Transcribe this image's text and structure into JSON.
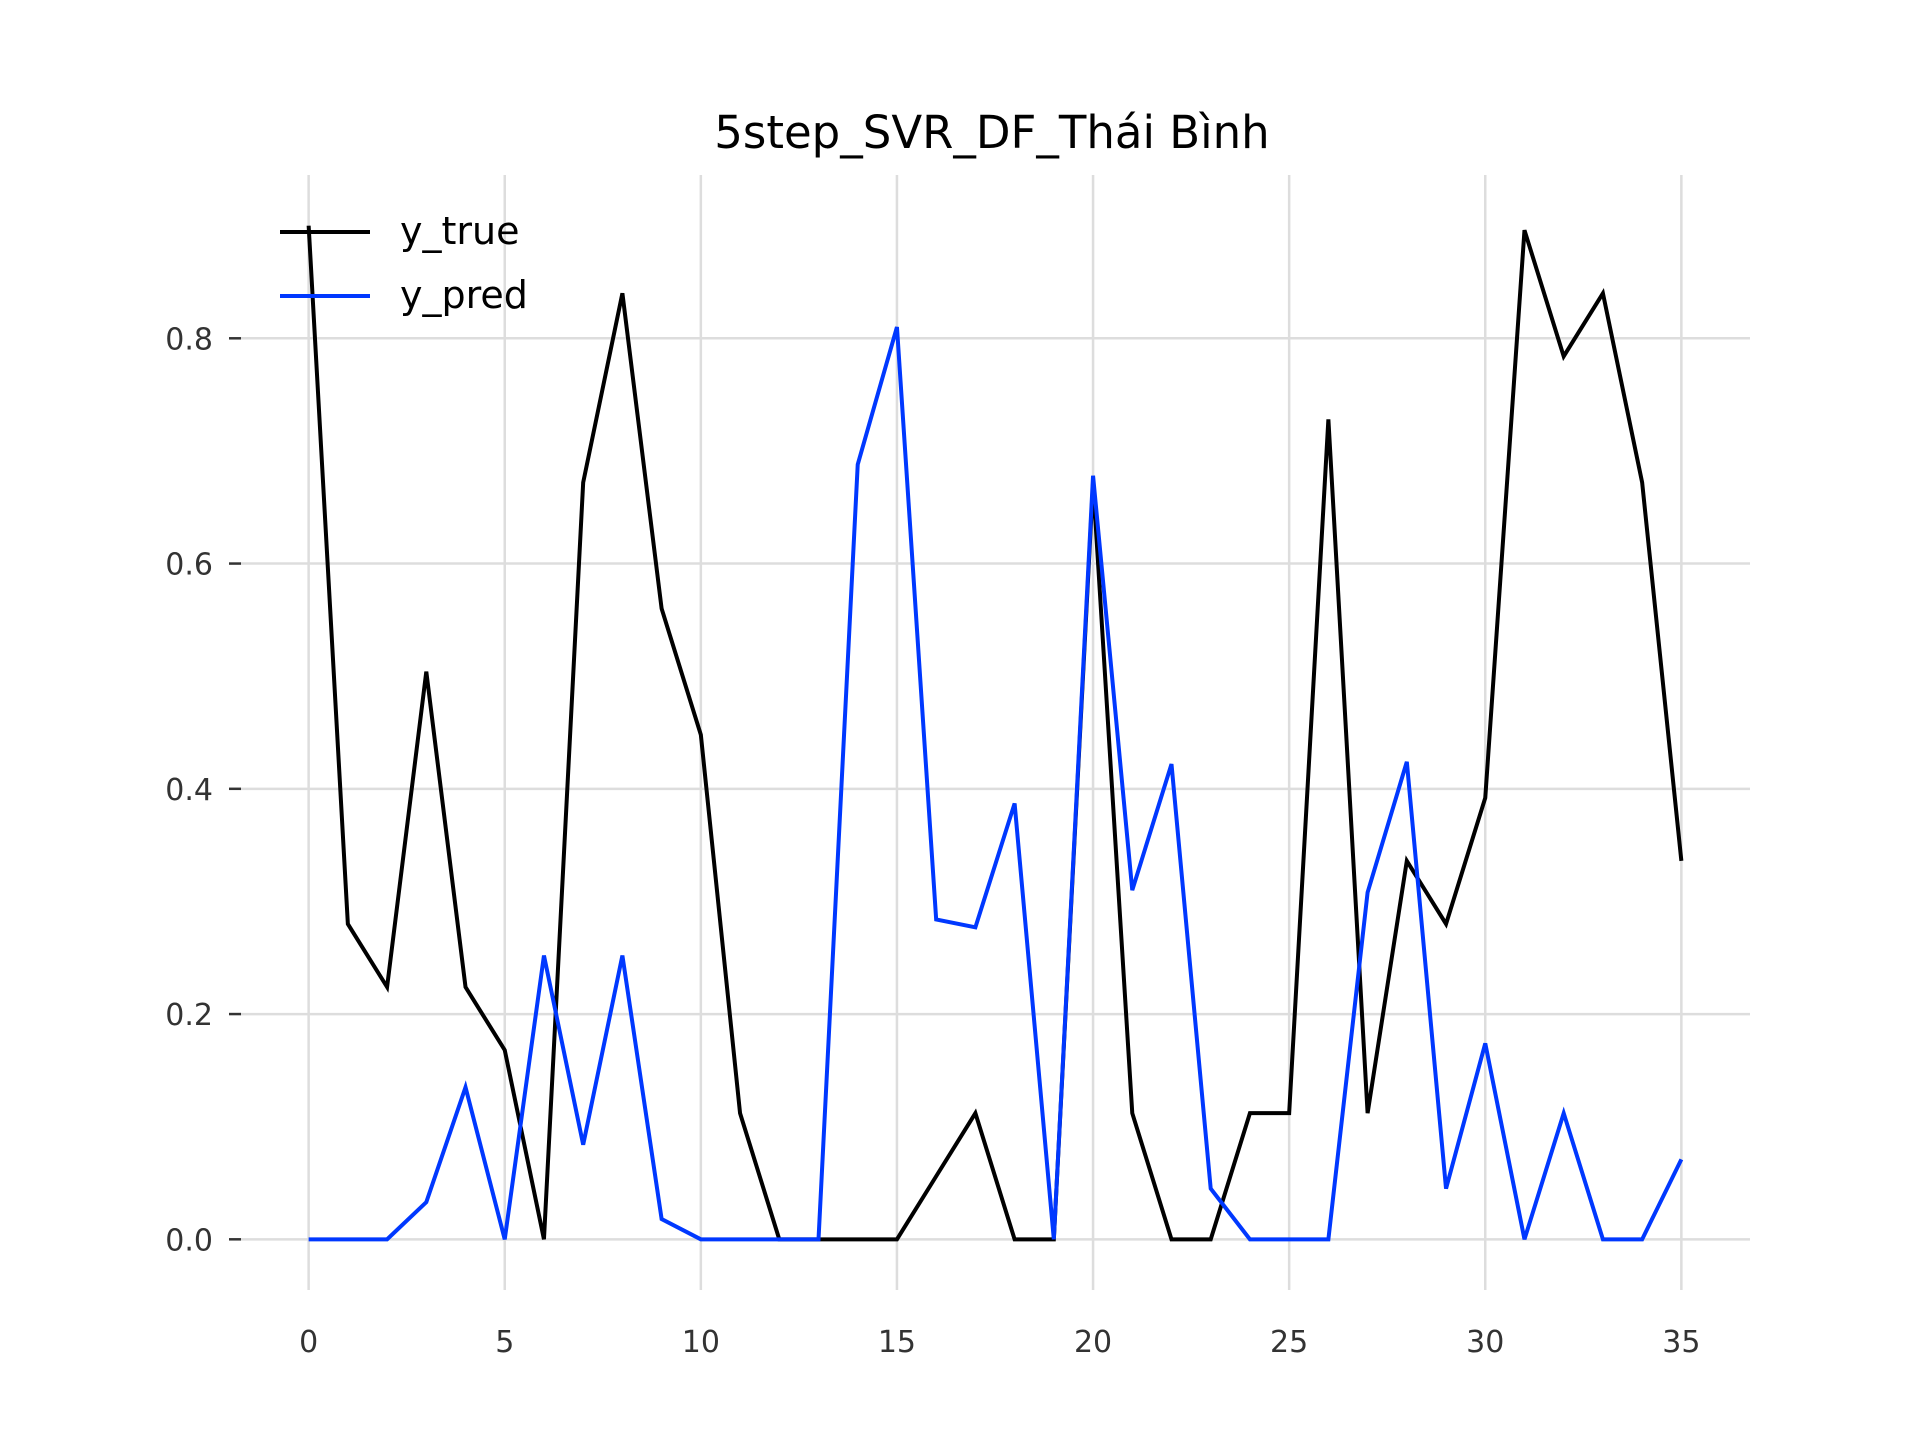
{
  "chart_data": {
    "type": "line",
    "title": "5step_SVR_DF_Thái Bình",
    "xlabel": "",
    "ylabel": "",
    "xlim": [
      -1.75,
      36.75
    ],
    "ylim": [
      -0.045,
      0.945
    ],
    "grid": true,
    "legend_position": "top-left",
    "x_ticks": [
      0,
      5,
      10,
      15,
      20,
      25,
      30,
      35
    ],
    "x_tick_labels": [
      "0",
      "5",
      "10",
      "15",
      "20",
      "25",
      "30",
      "35"
    ],
    "y_ticks": [
      0.0,
      0.2,
      0.4,
      0.6,
      0.8
    ],
    "y_tick_labels": [
      "0.0",
      "0.2",
      "0.4",
      "0.6",
      "0.8"
    ],
    "x": [
      0,
      1,
      2,
      3,
      4,
      5,
      6,
      7,
      8,
      9,
      10,
      11,
      12,
      13,
      14,
      15,
      16,
      17,
      18,
      19,
      20,
      21,
      22,
      23,
      24,
      25,
      26,
      27,
      28,
      29,
      30,
      31,
      32,
      33,
      34,
      35
    ],
    "series": [
      {
        "name": "y_true",
        "color": "#000000",
        "values": [
          0.9,
          0.28,
          0.224,
          0.504,
          0.224,
          0.168,
          0.0,
          0.672,
          0.84,
          0.56,
          0.448,
          0.112,
          0.0,
          0.0,
          0.0,
          0.0,
          0.056,
          0.112,
          0.0,
          0.0,
          0.672,
          0.112,
          0.0,
          0.0,
          0.112,
          0.112,
          0.728,
          0.112,
          0.336,
          0.28,
          0.392,
          0.896,
          0.784,
          0.84,
          0.672,
          0.336
        ]
      },
      {
        "name": "y_pred",
        "color": "#0038ff",
        "values": [
          0.0,
          0.0,
          0.0,
          0.033,
          0.135,
          0.0,
          0.252,
          0.084,
          0.252,
          0.018,
          0.0,
          0.0,
          0.0,
          0.0,
          0.688,
          0.81,
          0.284,
          0.277,
          0.387,
          0.0,
          0.678,
          0.31,
          0.422,
          0.045,
          0.0,
          0.0,
          0.0,
          0.308,
          0.424,
          0.045,
          0.174,
          0.0,
          0.112,
          0.0,
          0.0,
          0.071
        ]
      }
    ]
  }
}
